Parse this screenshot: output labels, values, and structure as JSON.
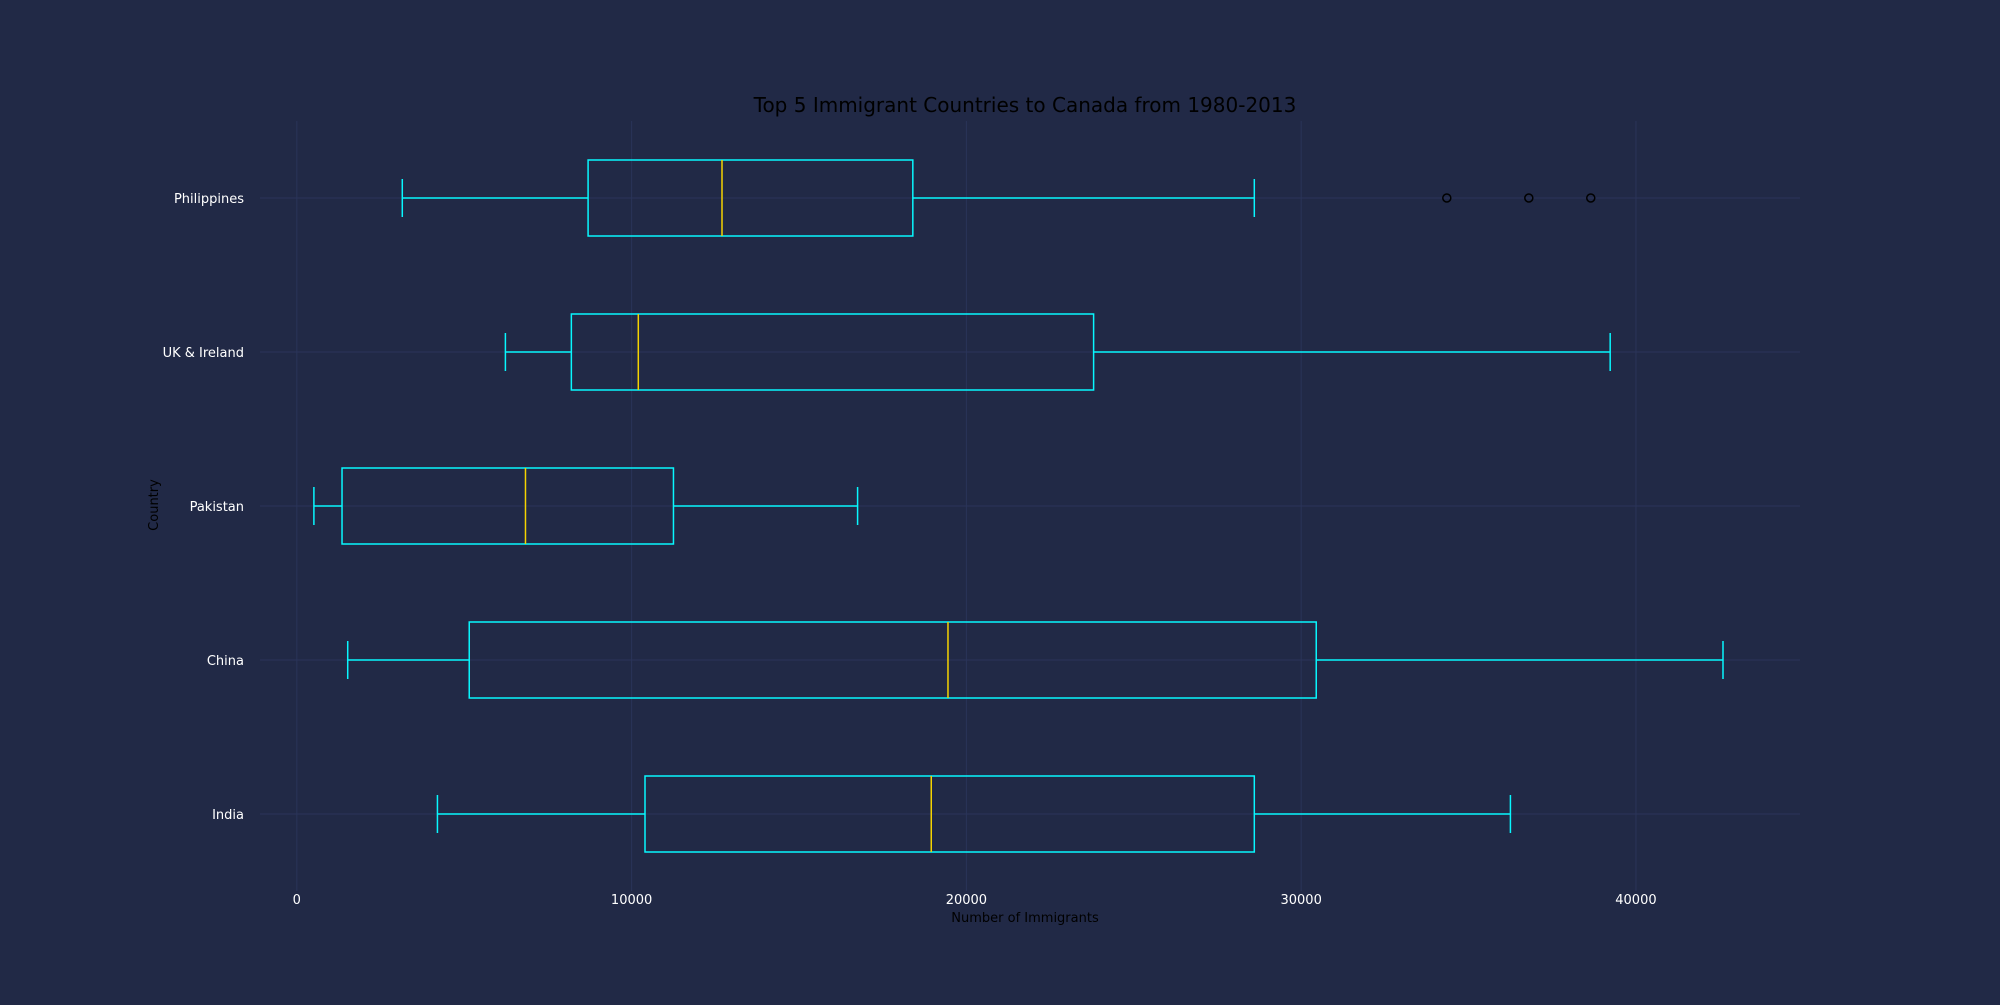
{
  "colors": {
    "background": "#212946",
    "grid": "#2A3459",
    "box": "#08F7FE",
    "median": "#F5D300",
    "flier": "#000000",
    "tick_label": "#FFFFFF",
    "axis_label": "#000000",
    "title": "#000000"
  },
  "chart_data": {
    "type": "box",
    "orientation": "horizontal",
    "title": "Top 5 Immigrant Countries to Canada from 1980-2013",
    "xlabel": "Number of Immigrants",
    "ylabel": "Country",
    "xlim": [
      -1100,
      44900
    ],
    "x_ticks": [
      0,
      10000,
      20000,
      30000,
      40000
    ],
    "grid": true,
    "legend": "none",
    "categories": [
      "India",
      "China",
      "Pakistan",
      "UK & Ireland",
      "Philippines"
    ],
    "boxes": [
      {
        "label": "India",
        "whisker_low": 4200,
        "q1": 10400,
        "median": 18950,
        "q3": 28600,
        "whisker_high": 36250,
        "fliers": []
      },
      {
        "label": "China",
        "whisker_low": 1520,
        "q1": 5150,
        "median": 19450,
        "q3": 30450,
        "whisker_high": 42600,
        "fliers": []
      },
      {
        "label": "Pakistan",
        "whisker_low": 510,
        "q1": 1350,
        "median": 6830,
        "q3": 11250,
        "whisker_high": 16750,
        "fliers": []
      },
      {
        "label": "UK & Ireland",
        "whisker_low": 6230,
        "q1": 8200,
        "median": 10200,
        "q3": 23800,
        "whisker_high": 39230,
        "fliers": []
      },
      {
        "label": "Philippines",
        "whisker_low": 3150,
        "q1": 8700,
        "median": 12700,
        "q3": 18400,
        "whisker_high": 28600,
        "fliers": [
          34350,
          36800,
          38650
        ]
      }
    ]
  }
}
